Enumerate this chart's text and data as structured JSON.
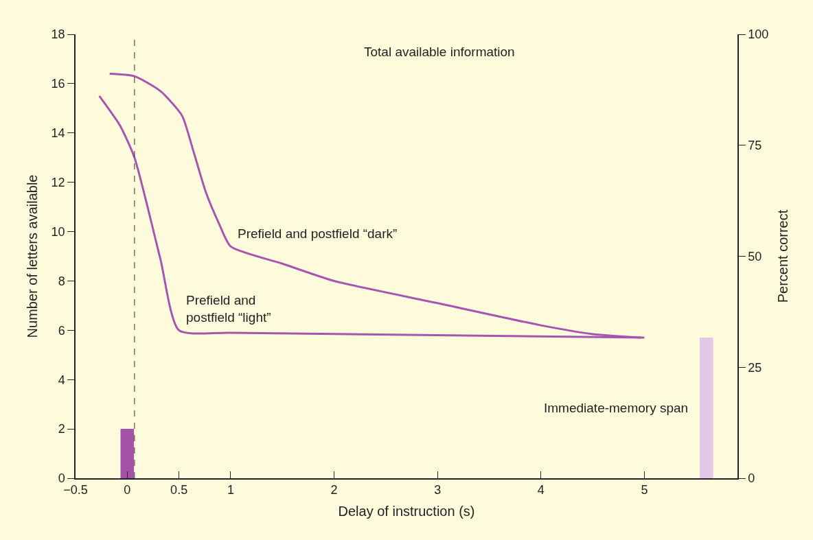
{
  "chart_data": {
    "type": "line",
    "xlabel": "Delay of instruction (s)",
    "ylabel": "Number of letters available",
    "y2label": "Percent correct",
    "annotations": [
      "Total available information"
    ],
    "xlim": [
      -0.5,
      5.9
    ],
    "xticks": [
      {
        "value": -0.5,
        "label": "−0.5"
      },
      0,
      0.5,
      1,
      2,
      3,
      4,
      5
    ],
    "ylim": [
      0,
      18
    ],
    "yticks": [
      0,
      2,
      4,
      6,
      8,
      10,
      12,
      14,
      16,
      18
    ],
    "y2lim": [
      0,
      100
    ],
    "y2ticks": [
      0,
      25,
      50,
      75,
      100
    ],
    "ref_lines": [
      {
        "axis": "x",
        "value": 0.07,
        "color": "#333333",
        "line_style": "dashed"
      }
    ],
    "grid": false,
    "legend": false,
    "marker": "none",
    "line_style": "solid",
    "series": [
      {
        "name": "Prefield and postfield “dark”",
        "color": "#a655b0",
        "x": [
          -0.17,
          0.07,
          0.32,
          0.53,
          0.63,
          0.76,
          0.89,
          1.0,
          1.5,
          2,
          3,
          4,
          4.49,
          4.97
        ],
        "values": [
          16.4,
          16.3,
          15.7,
          14.7,
          13.4,
          11.6,
          10.3,
          9.4,
          8.7,
          8.0,
          7.1,
          6.2,
          5.85,
          5.7
        ]
      },
      {
        "name": "Prefield and\npostfield “light”",
        "color": "#a655b0",
        "x": [
          -0.27,
          -0.07,
          0.07,
          0.32,
          0.5,
          1,
          5
        ],
        "values": [
          15.5,
          14.3,
          13.0,
          8.9,
          6.0,
          5.9,
          5.7
        ]
      },
      {
        "type": "bar",
        "color": "#a352a8",
        "x": [
          0
        ],
        "values": [
          2
        ]
      },
      {
        "type": "bar",
        "name": "Immediate-memory span",
        "color": "#e0c8e6",
        "x": [
          5.6
        ],
        "values": [
          5.7
        ]
      }
    ]
  }
}
